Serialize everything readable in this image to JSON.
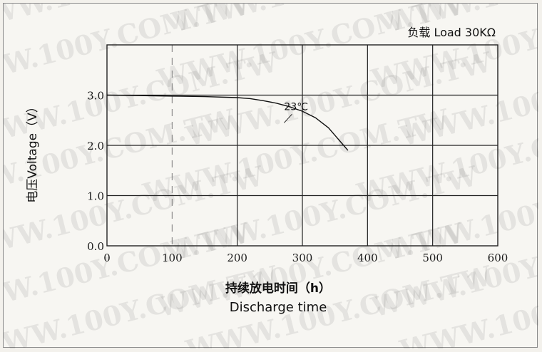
{
  "chart_data": {
    "type": "line",
    "title": "负载 Load 30KΩ",
    "ylabel": "电压Voltage（V）",
    "xlabel": "持续放电时间（h）",
    "xlabel_en": "Discharge time",
    "xlim": [
      0,
      600
    ],
    "ylim": [
      0,
      4
    ],
    "xticks": [
      "0",
      "100",
      "200",
      "300",
      "400",
      "500",
      "600"
    ],
    "yticks": [
      "0.0",
      "1.0",
      "2.0",
      "3.0"
    ],
    "grid": true,
    "annotation": "23℃",
    "series": [
      {
        "x": [
          0,
          50,
          100,
          150,
          200,
          220,
          240,
          260,
          280,
          300,
          320,
          340,
          350,
          360,
          370
        ],
        "y": [
          3.0,
          2.99,
          2.98,
          2.97,
          2.95,
          2.93,
          2.89,
          2.84,
          2.77,
          2.68,
          2.55,
          2.35,
          2.2,
          2.05,
          1.9
        ]
      }
    ]
  },
  "watermark": "WWW.100Y.COM.TW"
}
